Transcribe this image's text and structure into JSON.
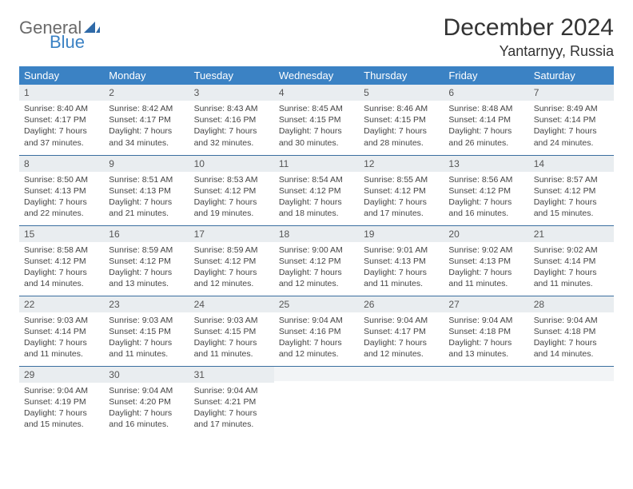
{
  "brand": {
    "part1": "General",
    "part2": "Blue"
  },
  "title": "December 2024",
  "location": "Yantarnyy, Russia",
  "colors": {
    "header_bg": "#3b82c4",
    "header_text": "#ffffff",
    "daynum_bg": "#e9edf0",
    "row_border": "#3b6fa0",
    "body_text": "#444444",
    "brand_gray": "#6a6a6a",
    "brand_blue": "#3b82c4"
  },
  "weekdays": [
    "Sunday",
    "Monday",
    "Tuesday",
    "Wednesday",
    "Thursday",
    "Friday",
    "Saturday"
  ],
  "weeks": [
    [
      {
        "n": "1",
        "sr": "Sunrise: 8:40 AM",
        "ss": "Sunset: 4:17 PM",
        "d1": "Daylight: 7 hours",
        "d2": "and 37 minutes."
      },
      {
        "n": "2",
        "sr": "Sunrise: 8:42 AM",
        "ss": "Sunset: 4:17 PM",
        "d1": "Daylight: 7 hours",
        "d2": "and 34 minutes."
      },
      {
        "n": "3",
        "sr": "Sunrise: 8:43 AM",
        "ss": "Sunset: 4:16 PM",
        "d1": "Daylight: 7 hours",
        "d2": "and 32 minutes."
      },
      {
        "n": "4",
        "sr": "Sunrise: 8:45 AM",
        "ss": "Sunset: 4:15 PM",
        "d1": "Daylight: 7 hours",
        "d2": "and 30 minutes."
      },
      {
        "n": "5",
        "sr": "Sunrise: 8:46 AM",
        "ss": "Sunset: 4:15 PM",
        "d1": "Daylight: 7 hours",
        "d2": "and 28 minutes."
      },
      {
        "n": "6",
        "sr": "Sunrise: 8:48 AM",
        "ss": "Sunset: 4:14 PM",
        "d1": "Daylight: 7 hours",
        "d2": "and 26 minutes."
      },
      {
        "n": "7",
        "sr": "Sunrise: 8:49 AM",
        "ss": "Sunset: 4:14 PM",
        "d1": "Daylight: 7 hours",
        "d2": "and 24 minutes."
      }
    ],
    [
      {
        "n": "8",
        "sr": "Sunrise: 8:50 AM",
        "ss": "Sunset: 4:13 PM",
        "d1": "Daylight: 7 hours",
        "d2": "and 22 minutes."
      },
      {
        "n": "9",
        "sr": "Sunrise: 8:51 AM",
        "ss": "Sunset: 4:13 PM",
        "d1": "Daylight: 7 hours",
        "d2": "and 21 minutes."
      },
      {
        "n": "10",
        "sr": "Sunrise: 8:53 AM",
        "ss": "Sunset: 4:12 PM",
        "d1": "Daylight: 7 hours",
        "d2": "and 19 minutes."
      },
      {
        "n": "11",
        "sr": "Sunrise: 8:54 AM",
        "ss": "Sunset: 4:12 PM",
        "d1": "Daylight: 7 hours",
        "d2": "and 18 minutes."
      },
      {
        "n": "12",
        "sr": "Sunrise: 8:55 AM",
        "ss": "Sunset: 4:12 PM",
        "d1": "Daylight: 7 hours",
        "d2": "and 17 minutes."
      },
      {
        "n": "13",
        "sr": "Sunrise: 8:56 AM",
        "ss": "Sunset: 4:12 PM",
        "d1": "Daylight: 7 hours",
        "d2": "and 16 minutes."
      },
      {
        "n": "14",
        "sr": "Sunrise: 8:57 AM",
        "ss": "Sunset: 4:12 PM",
        "d1": "Daylight: 7 hours",
        "d2": "and 15 minutes."
      }
    ],
    [
      {
        "n": "15",
        "sr": "Sunrise: 8:58 AM",
        "ss": "Sunset: 4:12 PM",
        "d1": "Daylight: 7 hours",
        "d2": "and 14 minutes."
      },
      {
        "n": "16",
        "sr": "Sunrise: 8:59 AM",
        "ss": "Sunset: 4:12 PM",
        "d1": "Daylight: 7 hours",
        "d2": "and 13 minutes."
      },
      {
        "n": "17",
        "sr": "Sunrise: 8:59 AM",
        "ss": "Sunset: 4:12 PM",
        "d1": "Daylight: 7 hours",
        "d2": "and 12 minutes."
      },
      {
        "n": "18",
        "sr": "Sunrise: 9:00 AM",
        "ss": "Sunset: 4:12 PM",
        "d1": "Daylight: 7 hours",
        "d2": "and 12 minutes."
      },
      {
        "n": "19",
        "sr": "Sunrise: 9:01 AM",
        "ss": "Sunset: 4:13 PM",
        "d1": "Daylight: 7 hours",
        "d2": "and 11 minutes."
      },
      {
        "n": "20",
        "sr": "Sunrise: 9:02 AM",
        "ss": "Sunset: 4:13 PM",
        "d1": "Daylight: 7 hours",
        "d2": "and 11 minutes."
      },
      {
        "n": "21",
        "sr": "Sunrise: 9:02 AM",
        "ss": "Sunset: 4:14 PM",
        "d1": "Daylight: 7 hours",
        "d2": "and 11 minutes."
      }
    ],
    [
      {
        "n": "22",
        "sr": "Sunrise: 9:03 AM",
        "ss": "Sunset: 4:14 PM",
        "d1": "Daylight: 7 hours",
        "d2": "and 11 minutes."
      },
      {
        "n": "23",
        "sr": "Sunrise: 9:03 AM",
        "ss": "Sunset: 4:15 PM",
        "d1": "Daylight: 7 hours",
        "d2": "and 11 minutes."
      },
      {
        "n": "24",
        "sr": "Sunrise: 9:03 AM",
        "ss": "Sunset: 4:15 PM",
        "d1": "Daylight: 7 hours",
        "d2": "and 11 minutes."
      },
      {
        "n": "25",
        "sr": "Sunrise: 9:04 AM",
        "ss": "Sunset: 4:16 PM",
        "d1": "Daylight: 7 hours",
        "d2": "and 12 minutes."
      },
      {
        "n": "26",
        "sr": "Sunrise: 9:04 AM",
        "ss": "Sunset: 4:17 PM",
        "d1": "Daylight: 7 hours",
        "d2": "and 12 minutes."
      },
      {
        "n": "27",
        "sr": "Sunrise: 9:04 AM",
        "ss": "Sunset: 4:18 PM",
        "d1": "Daylight: 7 hours",
        "d2": "and 13 minutes."
      },
      {
        "n": "28",
        "sr": "Sunrise: 9:04 AM",
        "ss": "Sunset: 4:18 PM",
        "d1": "Daylight: 7 hours",
        "d2": "and 14 minutes."
      }
    ],
    [
      {
        "n": "29",
        "sr": "Sunrise: 9:04 AM",
        "ss": "Sunset: 4:19 PM",
        "d1": "Daylight: 7 hours",
        "d2": "and 15 minutes."
      },
      {
        "n": "30",
        "sr": "Sunrise: 9:04 AM",
        "ss": "Sunset: 4:20 PM",
        "d1": "Daylight: 7 hours",
        "d2": "and 16 minutes."
      },
      {
        "n": "31",
        "sr": "Sunrise: 9:04 AM",
        "ss": "Sunset: 4:21 PM",
        "d1": "Daylight: 7 hours",
        "d2": "and 17 minutes."
      },
      {
        "empty": true
      },
      {
        "empty": true
      },
      {
        "empty": true
      },
      {
        "empty": true
      }
    ]
  ]
}
